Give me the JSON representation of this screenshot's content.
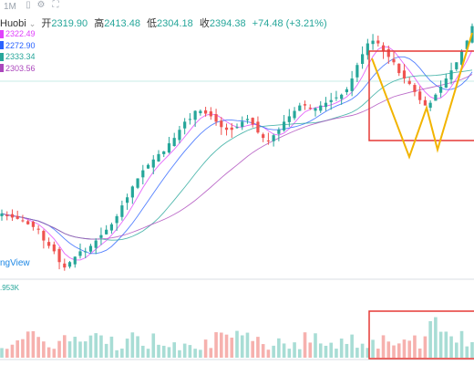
{
  "toolbar": {
    "timeframe": "1M",
    "icons": [
      "candle-style-icon",
      "settings-icon",
      "fullscreen-icon"
    ]
  },
  "legend": {
    "symbol": "Huobi",
    "open_label": "开",
    "open": "2319.90",
    "high_label": "高",
    "high": "2413.48",
    "low_label": "低",
    "low": "2304.18",
    "close_label": "收",
    "close": "2394.38",
    "change": "+74.48 (+3.21%)"
  },
  "moving_averages": [
    {
      "value": "2322.49",
      "color": "#e040fb"
    },
    {
      "value": "2272.90",
      "color": "#2962ff"
    },
    {
      "value": "2333.34",
      "color": "#26a69a"
    },
    {
      "value": "2303.56",
      "color": "#ab47bc"
    }
  ],
  "watermark": "ngView",
  "volume_label": ".953K",
  "colors": {
    "up": "#26a69a",
    "down": "#ef5350",
    "vol_up": "#a8ddd5",
    "vol_down": "#f6b1ae",
    "pattern": "#f2b400",
    "box": "#e53935"
  },
  "chart_data": {
    "type": "candlestick",
    "seed_start_close": 1690,
    "candles_note": "approx",
    "close_path": [
      1700,
      1690,
      1685,
      1680,
      1672,
      1660,
      1650,
      1640,
      1600,
      1580,
      1560,
      1520,
      1500,
      1520,
      1540,
      1560,
      1560,
      1580,
      1600,
      1620,
      1640,
      1660,
      1690,
      1730,
      1760,
      1800,
      1830,
      1860,
      1880,
      1900,
      1920,
      1930,
      1960,
      1980,
      2010,
      2040,
      2050,
      2080,
      2080,
      2070,
      2060,
      2040,
      2020,
      2010,
      2010,
      2020,
      2040,
      2050,
      2030,
      2000,
      1980,
      1970,
      1990,
      2010,
      2040,
      2060,
      2080,
      2100,
      2100,
      2090,
      2090,
      2100,
      2110,
      2120,
      2130,
      2140,
      2160,
      2200,
      2250,
      2290,
      2330,
      2340,
      2330,
      2300,
      2280,
      2260,
      2220,
      2200,
      2180,
      2150,
      2120,
      2100,
      2110,
      2140,
      2170,
      2200,
      2230,
      2260,
      2300,
      2340,
      2394
    ],
    "x_ticks": [],
    "y_ticks": []
  }
}
